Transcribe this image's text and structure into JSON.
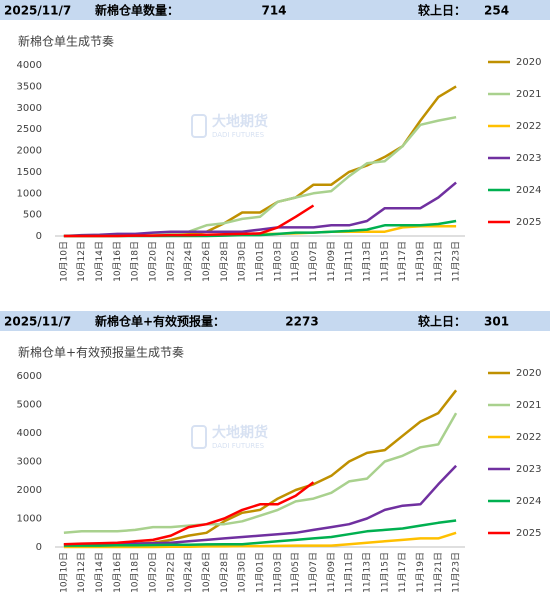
{
  "chart_data": [
    {
      "type": "line",
      "header": {
        "date": "2025/11/7",
        "label": "新棉仓单数量：",
        "value": "714",
        "change_label": "较上日：",
        "change": "254"
      },
      "title": "新棉仓单生成节奏",
      "watermark": {
        "name": "大地期货",
        "sub": "DADI FUTURES"
      },
      "categories": [
        "10月10日",
        "10月12日",
        "10月14日",
        "10月16日",
        "10月18日",
        "10月20日",
        "10月22日",
        "10月24日",
        "10月26日",
        "10月28日",
        "10月30日",
        "11月01日",
        "11月03日",
        "11月05日",
        "11月07日",
        "11月09日",
        "11月11日",
        "11月13日",
        "11月15日",
        "11月17日",
        "11月19日",
        "11月21日",
        "11月23日"
      ],
      "ylim": [
        0,
        4000
      ],
      "yticks": [
        0,
        500,
        1000,
        1500,
        2000,
        2500,
        3000,
        3500,
        4000
      ],
      "legend": "right",
      "series": [
        {
          "name": "2020",
          "color": "#bf9000",
          "values": [
            0,
            0,
            0,
            10,
            20,
            30,
            50,
            60,
            100,
            300,
            550,
            550,
            800,
            900,
            1200,
            1200,
            1500,
            1650,
            1850,
            2100,
            2700,
            3250,
            3500
          ]
        },
        {
          "name": "2021",
          "color": "#a9d18e",
          "values": [
            0,
            0,
            0,
            10,
            20,
            40,
            60,
            100,
            250,
            300,
            400,
            450,
            800,
            900,
            1000,
            1050,
            1400,
            1700,
            1750,
            2100,
            2600,
            2700,
            2780
          ]
        },
        {
          "name": "2022",
          "color": "#ffc000",
          "values": [
            0,
            0,
            0,
            0,
            10,
            10,
            20,
            20,
            30,
            30,
            40,
            50,
            50,
            60,
            80,
            100,
            100,
            100,
            100,
            200,
            230,
            230,
            230
          ]
        },
        {
          "name": "2023",
          "color": "#7030a0",
          "values": [
            0,
            20,
            30,
            50,
            50,
            80,
            100,
            100,
            100,
            100,
            100,
            150,
            200,
            200,
            200,
            250,
            250,
            350,
            650,
            650,
            650,
            900,
            1250
          ]
        },
        {
          "name": "2024",
          "color": "#00b050",
          "values": [
            0,
            0,
            0,
            0,
            0,
            0,
            0,
            0,
            0,
            10,
            20,
            20,
            50,
            80,
            80,
            100,
            120,
            150,
            250,
            250,
            250,
            280,
            350
          ]
        },
        {
          "name": "2025",
          "color": "#ff0000",
          "values": [
            0,
            0,
            0,
            0,
            10,
            10,
            20,
            20,
            30,
            40,
            50,
            60,
            200,
            450,
            714,
            null,
            null,
            null,
            null,
            null,
            null,
            null,
            null
          ]
        }
      ]
    },
    {
      "type": "line",
      "header": {
        "date": "2025/11/7",
        "label": "新棉仓单+有效预报量：",
        "value": "2273",
        "change_label": "较上日：",
        "change": "301"
      },
      "title": "新棉仓单+有效预报量生成节奏",
      "watermark": {
        "name": "大地期货",
        "sub": "DADI FUTURES"
      },
      "categories": [
        "10月10日",
        "10月12日",
        "10月14日",
        "10月16日",
        "10月18日",
        "10月20日",
        "10月22日",
        "10月24日",
        "10月26日",
        "10月28日",
        "10月30日",
        "11月01日",
        "11月03日",
        "11月05日",
        "11月07日",
        "11月09日",
        "11月11日",
        "11月13日",
        "11月15日",
        "11月17日",
        "11月19日",
        "11月21日",
        "11月23日"
      ],
      "ylim": [
        0,
        6000
      ],
      "yticks": [
        0,
        1000,
        2000,
        3000,
        4000,
        5000,
        6000
      ],
      "legend": "right",
      "series": [
        {
          "name": "2020",
          "color": "#bf9000",
          "values": [
            100,
            100,
            100,
            100,
            120,
            150,
            250,
            400,
            500,
            900,
            1200,
            1300,
            1700,
            2000,
            2200,
            2500,
            3000,
            3300,
            3400,
            3900,
            4400,
            4700,
            5500
          ]
        },
        {
          "name": "2021",
          "color": "#a9d18e",
          "values": [
            500,
            550,
            550,
            550,
            600,
            700,
            700,
            750,
            800,
            800,
            900,
            1100,
            1300,
            1600,
            1700,
            1900,
            2300,
            2400,
            3000,
            3200,
            3500,
            3600,
            4700
          ]
        },
        {
          "name": "2022",
          "color": "#ffc000",
          "values": [
            0,
            0,
            0,
            0,
            0,
            0,
            10,
            10,
            20,
            20,
            30,
            30,
            40,
            50,
            50,
            50,
            100,
            150,
            200,
            250,
            300,
            300,
            500
          ]
        },
        {
          "name": "2023",
          "color": "#7030a0",
          "values": [
            100,
            100,
            100,
            100,
            120,
            130,
            150,
            200,
            250,
            300,
            350,
            400,
            450,
            500,
            600,
            700,
            800,
            1000,
            1300,
            1450,
            1500,
            2200,
            2850
          ]
        },
        {
          "name": "2024",
          "color": "#00b050",
          "values": [
            50,
            50,
            50,
            60,
            60,
            70,
            80,
            80,
            90,
            100,
            100,
            150,
            200,
            250,
            300,
            350,
            450,
            550,
            600,
            650,
            750,
            850,
            930
          ]
        },
        {
          "name": "2025",
          "color": "#ff0000",
          "values": [
            100,
            120,
            130,
            150,
            200,
            250,
            400,
            700,
            800,
            1000,
            1300,
            1500,
            1500,
            1800,
            2273,
            null,
            null,
            null,
            null,
            null,
            null,
            null,
            null
          ]
        }
      ]
    }
  ]
}
